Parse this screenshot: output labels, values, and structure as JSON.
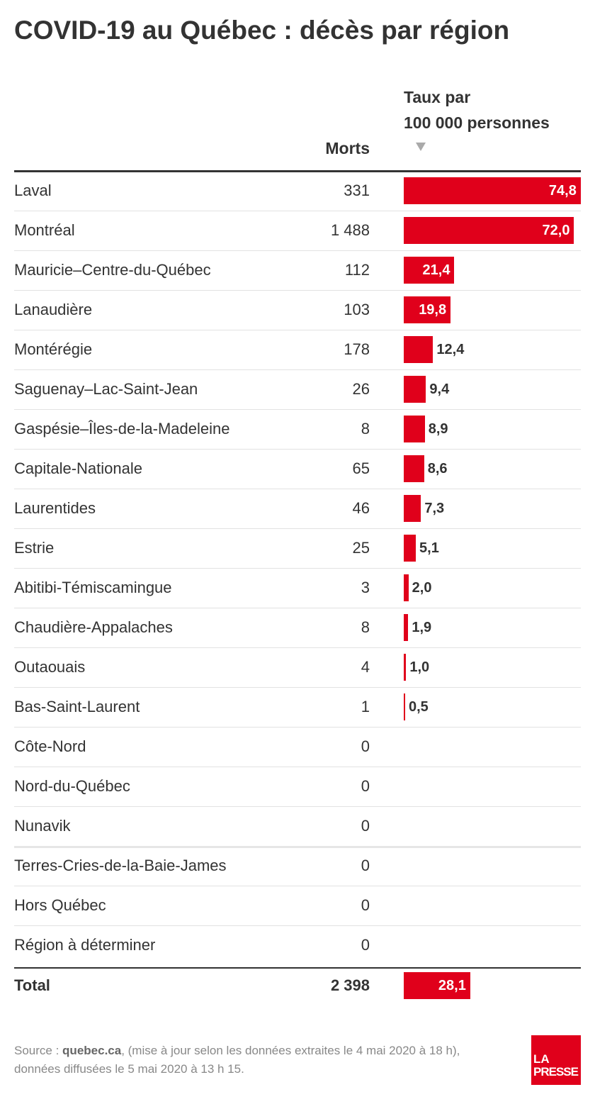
{
  "title": "COVID-19 au Québec : décès par région",
  "table": {
    "headers": {
      "deaths": "Morts",
      "rate_line1": "Taux par",
      "rate_line2": "100 000 personnes"
    },
    "rows": [
      {
        "region": "Laval",
        "deaths": "331",
        "rate": 74.8,
        "rate_label": "74,8"
      },
      {
        "region": "Montréal",
        "deaths": "1 488",
        "rate": 72.0,
        "rate_label": "72,0"
      },
      {
        "region": "Mauricie–Centre-du-Québec",
        "deaths": "112",
        "rate": 21.4,
        "rate_label": "21,4"
      },
      {
        "region": "Lanaudière",
        "deaths": "103",
        "rate": 19.8,
        "rate_label": "19,8"
      },
      {
        "region": "Montérégie",
        "deaths": "178",
        "rate": 12.4,
        "rate_label": "12,4"
      },
      {
        "region": "Saguenay–Lac-Saint-Jean",
        "deaths": "26",
        "rate": 9.4,
        "rate_label": "9,4"
      },
      {
        "region": "Gaspésie–Îles-de-la-Madeleine",
        "deaths": "8",
        "rate": 8.9,
        "rate_label": "8,9"
      },
      {
        "region": "Capitale-Nationale",
        "deaths": "65",
        "rate": 8.6,
        "rate_label": "8,6"
      },
      {
        "region": "Laurentides",
        "deaths": "46",
        "rate": 7.3,
        "rate_label": "7,3"
      },
      {
        "region": "Estrie",
        "deaths": "25",
        "rate": 5.1,
        "rate_label": "5,1"
      },
      {
        "region": "Abitibi-Témiscamingue",
        "deaths": "3",
        "rate": 2.0,
        "rate_label": "2,0"
      },
      {
        "region": "Chaudière-Appalaches",
        "deaths": "8",
        "rate": 1.9,
        "rate_label": "1,9"
      },
      {
        "region": "Outaouais",
        "deaths": "4",
        "rate": 1.0,
        "rate_label": "1,0"
      },
      {
        "region": "Bas-Saint-Laurent",
        "deaths": "1",
        "rate": 0.5,
        "rate_label": "0,5"
      },
      {
        "region": "Côte-Nord",
        "deaths": "0"
      },
      {
        "region": "Nord-du-Québec",
        "deaths": "0"
      },
      {
        "region": "Nunavik",
        "deaths": "0"
      },
      {
        "region": "Terres-Cries-de-la-Baie-James",
        "deaths": "0"
      },
      {
        "region": "Hors Québec",
        "deaths": "0"
      },
      {
        "region": "Région à déterminer",
        "deaths": "0"
      }
    ],
    "total": {
      "region": "Total",
      "deaths": "2 398",
      "rate": 28.1,
      "rate_label": "28,1"
    },
    "bar_color": "#e0001b"
  },
  "source": {
    "prefix": "Source :",
    "link": "quebec.ca",
    "text": ", (mise à jour selon les données extraites le 4 mai 2020 à 18 h),",
    "line2": "données diffusées le 5 mai 2020 à 13 h 15."
  },
  "logo": {
    "line1": "LA",
    "line2": "PRESSE"
  }
}
